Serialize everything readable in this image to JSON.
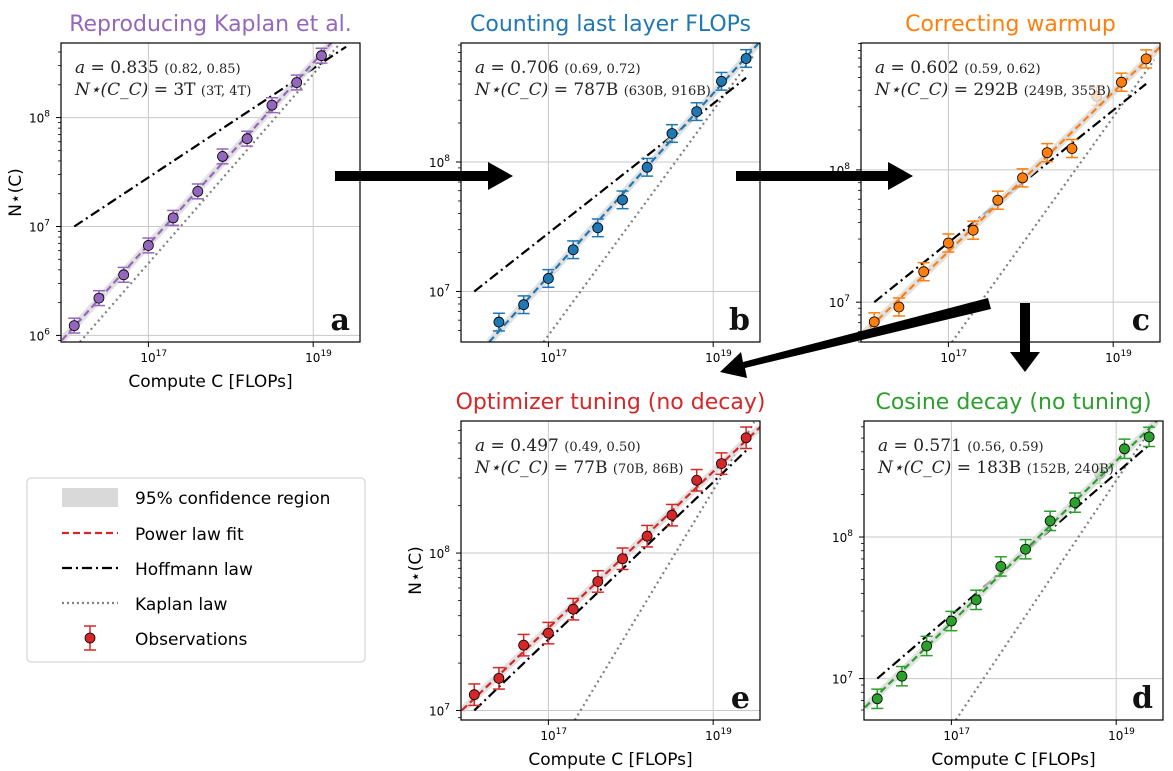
{
  "chart_data": {
    "type": "scatter",
    "scale": {
      "x": "log",
      "y": "log"
    },
    "grid": true,
    "xlabel": "Compute C [FLOPs]",
    "ylabel": "N⋆(C)",
    "xticks": [
      1e+17,
      1e+19
    ],
    "xlim": [
      8700000000000000.0,
      3.7e+19
    ],
    "annotation_labels": {
      "a": "a",
      "n": "N⋆(C_C)"
    },
    "hoffmann_law": {
      "x": [
        1.26e+16,
        2.51e+19
      ],
      "y": [
        10000000.0,
        447000000.0
      ]
    },
    "kaplan_law": {
      "x": [
        1e+16,
        3.16e+19
      ],
      "y": [
        620000.0,
        680000000.0
      ]
    },
    "panels": [
      {
        "id": "a",
        "title": "Reproducing Kaplan et al.",
        "color": "#9467bd",
        "letter": "a",
        "fit_a": "0.835",
        "ci_a": "(0.82, 0.85)",
        "n_cc": "3T",
        "ci_n": "(3T, 4T)",
        "ylim": [
          870000.0,
          484000000.0
        ],
        "yticks": [
          1000000.0,
          10000000.0,
          100000000.0
        ],
        "show_xlabel": true,
        "show_ylabel": true,
        "x": [
          1.26e+16,
          2.51e+16,
          5.01e+16,
          1e+17,
          2e+17,
          3.98e+17,
          7.94e+17,
          1.58e+18,
          3.16e+18,
          6.31e+18,
          1.26e+19
        ],
        "y": [
          1230000.0,
          2200000.0,
          3600000.0,
          6700000.0,
          12000000.0,
          21000000.0,
          44000000.0,
          64000000.0,
          130000000.0,
          210000000.0,
          370000000.0
        ],
        "faded": []
      },
      {
        "id": "b",
        "title": "Counting last layer FLOPs",
        "color": "#1f77b4",
        "letter": "b",
        "fit_a": "0.706",
        "ci_a": "(0.69, 0.72)",
        "n_cc": "787B",
        "ci_n": "(630B, 916B)",
        "ylim": [
          4070000.0,
          830000000.0
        ],
        "yticks": [
          10000000.0,
          100000000.0
        ],
        "show_xlabel": false,
        "show_ylabel": false,
        "x": [
          2.51e+16,
          5.01e+16,
          1e+17,
          2e+17,
          3.98e+17,
          7.94e+17,
          1.58e+18,
          3.16e+18,
          6.31e+18,
          1.26e+19,
          2.51e+19
        ],
        "y": [
          5800000.0,
          7900000.0,
          12600000.0,
          21000000.0,
          31000000.0,
          51000000.0,
          91000000.0,
          166000000.0,
          245000000.0,
          420000000.0,
          630000000.0
        ],
        "faded": []
      },
      {
        "id": "c",
        "title": "Correcting warmup",
        "color": "#ff7f0e",
        "letter": "c",
        "fit_a": "0.602",
        "ci_a": "(0.59, 0.62)",
        "n_cc": "292B",
        "ci_n": "(249B, 355B)",
        "ylim": [
          5000000.0,
          910000000.0
        ],
        "yticks": [
          10000000.0,
          100000000.0
        ],
        "show_xlabel": false,
        "show_ylabel": false,
        "x": [
          1.26e+16,
          2.51e+16,
          5.01e+16,
          1e+17,
          2e+17,
          3.98e+17,
          7.94e+17,
          1.58e+18,
          3.16e+18,
          6.31e+18,
          1.26e+19,
          2.51e+19
        ],
        "y": [
          7100000.0,
          9200000.0,
          17000000.0,
          28000000.0,
          35000000.0,
          59000000.0,
          87000000.0,
          135000000.0,
          145000000.0,
          360000000.0,
          460000000.0,
          690000000.0
        ],
        "faded": [
          9
        ]
      },
      {
        "id": "e",
        "title": "Optimizer tuning (no decay)",
        "color": "#d62728",
        "letter": "e",
        "fit_a": "0.497",
        "ci_a": "(0.49, 0.50)",
        "n_cc": "77B",
        "ci_n": "(70B, 86B)",
        "ylim": [
          8700000.0,
          690000000.0
        ],
        "yticks": [
          10000000.0,
          100000000.0
        ],
        "show_xlabel": true,
        "show_ylabel": true,
        "x": [
          1.26e+16,
          2.51e+16,
          5.01e+16,
          1e+17,
          2e+17,
          3.98e+17,
          7.94e+17,
          1.58e+18,
          3.16e+18,
          6.31e+18,
          1.26e+19,
          2.51e+19
        ],
        "y": [
          12600000.0,
          16000000.0,
          26000000.0,
          31000000.0,
          44000000.0,
          66000000.0,
          92000000.0,
          128000000.0,
          174000000.0,
          290000000.0,
          370000000.0,
          540000000.0
        ],
        "faded": []
      },
      {
        "id": "d",
        "title": "Cosine decay (no tuning)",
        "color": "#2ca02c",
        "letter": "d",
        "fit_a": "0.571",
        "ci_a": "(0.56, 0.59)",
        "n_cc": "183B",
        "ci_n": "(152B, 240B)",
        "ylim": [
          5100000.0,
          660000000.0
        ],
        "yticks": [
          10000000.0,
          100000000.0
        ],
        "show_xlabel": true,
        "show_ylabel": false,
        "x": [
          1.26e+16,
          2.51e+16,
          5.01e+16,
          1e+17,
          2e+17,
          3.98e+17,
          7.94e+17,
          1.58e+18,
          3.16e+18,
          6.31e+18,
          1.26e+19,
          2.51e+19
        ],
        "y": [
          7200000.0,
          10400000.0,
          17000000.0,
          25500000.0,
          36000000.0,
          62000000.0,
          82000000.0,
          130000000.0,
          175000000.0,
          280000000.0,
          420000000.0,
          510000000.0
        ],
        "faded": [
          9
        ]
      }
    ],
    "legend": {
      "placement": "lower-left",
      "items": [
        {
          "label": "95% confidence region",
          "style": "patch",
          "color": "#d9d9d9"
        },
        {
          "label": "Power law fit",
          "style": "dashed",
          "color": "#d62728"
        },
        {
          "label": "Hoffmann law",
          "style": "dash-dot",
          "color": "#000000"
        },
        {
          "label": "Kaplan law",
          "style": "dotted",
          "color": "#808080"
        },
        {
          "label": "Observations",
          "style": "errorbar-marker",
          "color": "#d62728"
        }
      ]
    },
    "flow": [
      [
        "a",
        "b"
      ],
      [
        "b",
        "c"
      ],
      [
        "c",
        "e"
      ],
      [
        "c",
        "d"
      ]
    ]
  }
}
